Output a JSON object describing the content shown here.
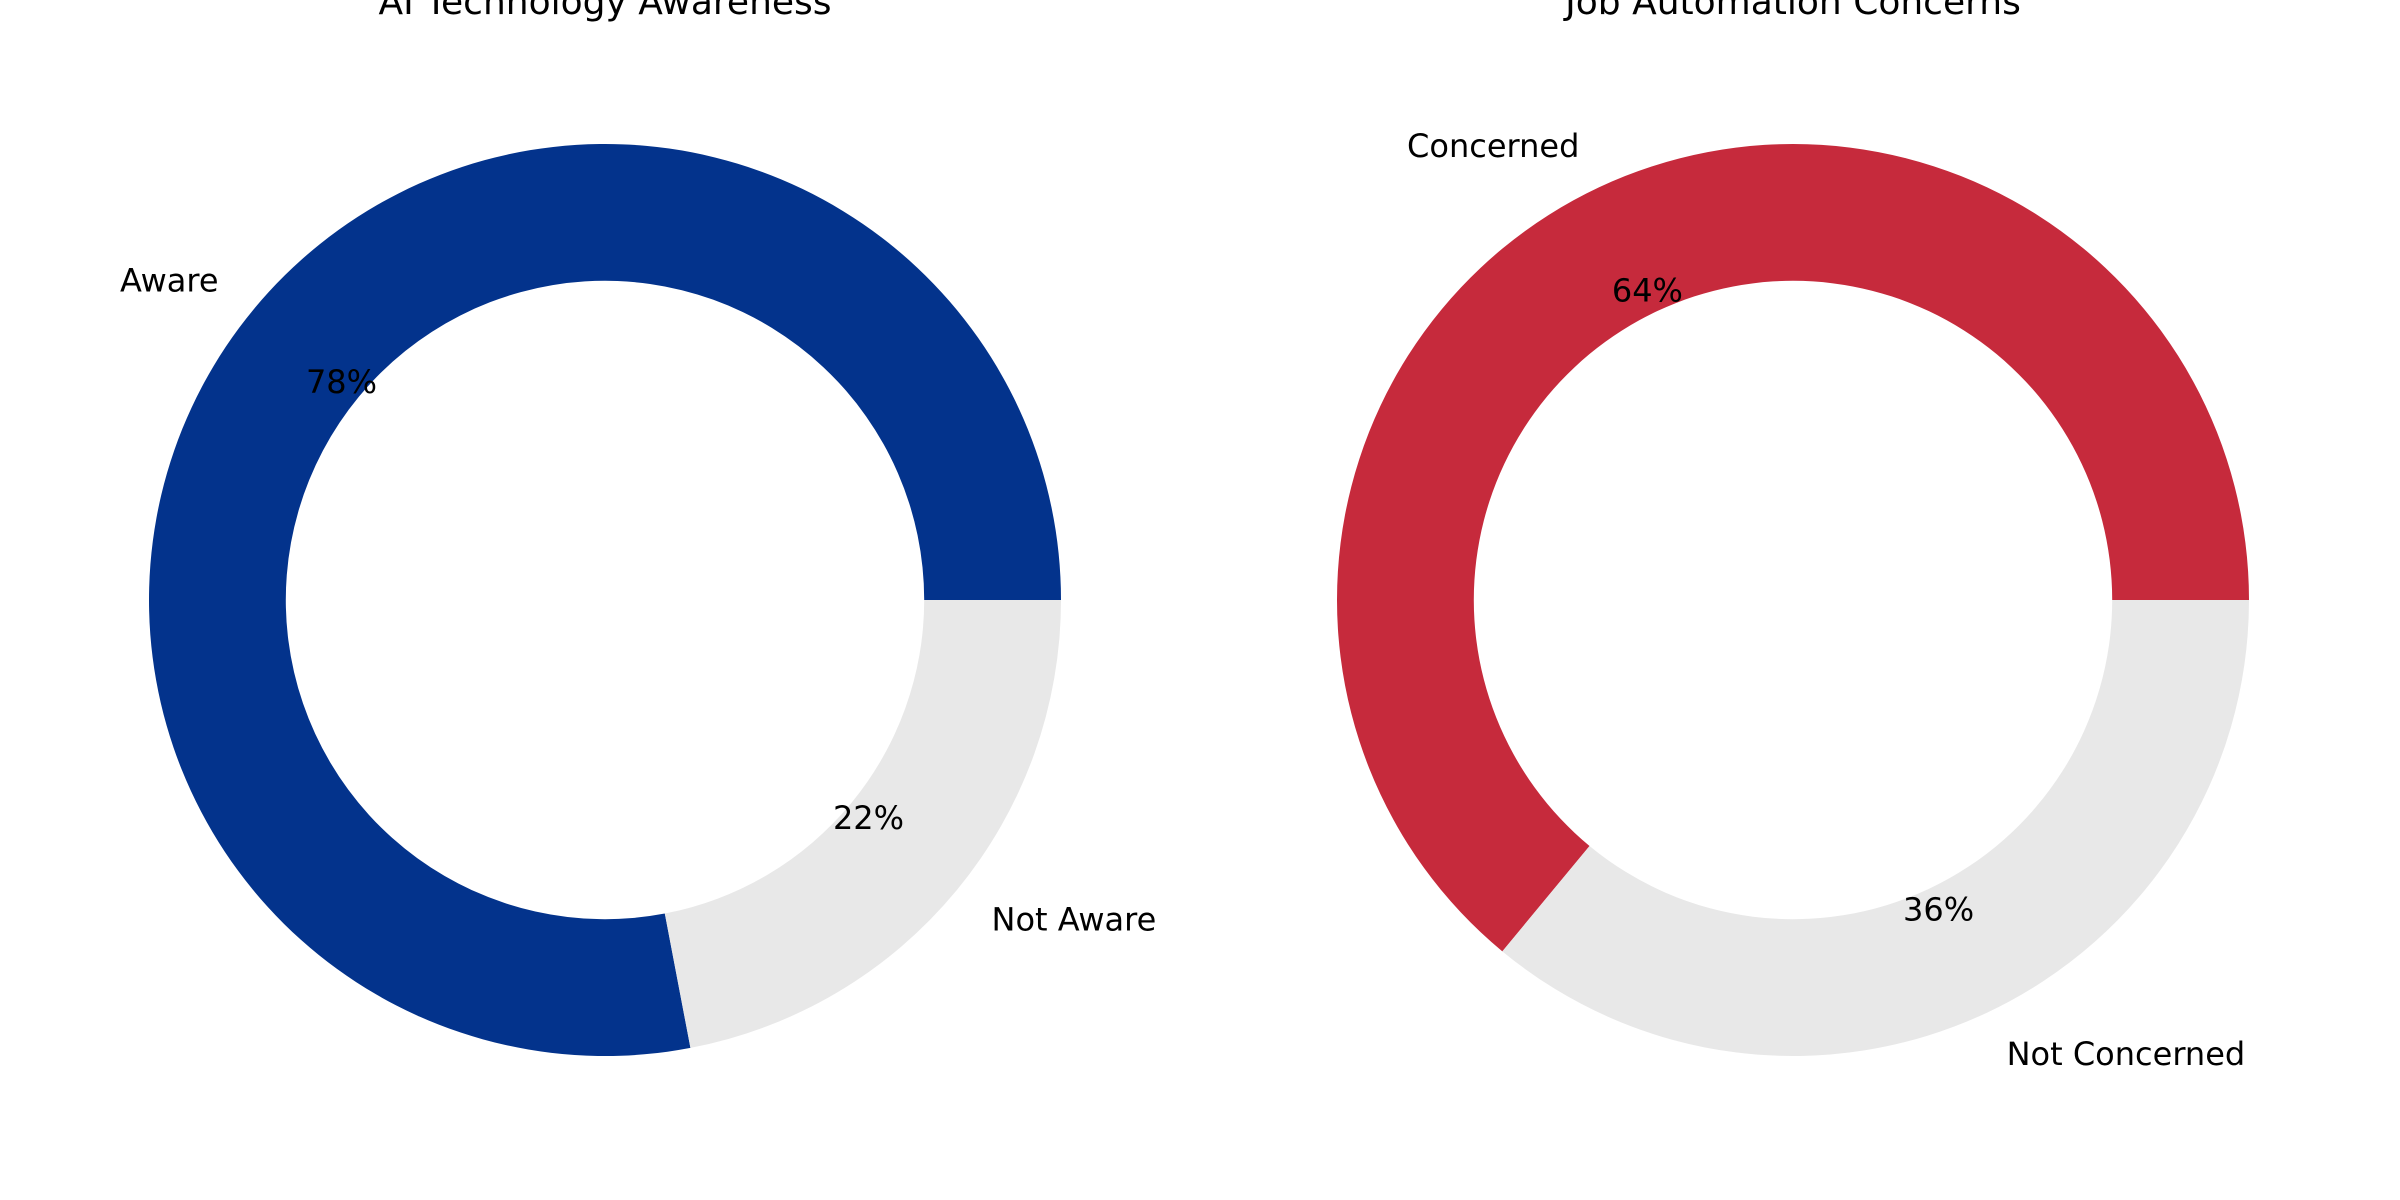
{
  "page": {
    "background": "#ffffff",
    "text_color": "#000000"
  },
  "chart_data": [
    {
      "type": "pie",
      "subtype": "donut",
      "title": "AI Technology Awareness",
      "donut_hole_ratio": 0.7,
      "start_angle": 0,
      "direction": "counterclockwise",
      "legend": "none",
      "grid": false,
      "label_distance": 1.1,
      "pct_distance": 0.75,
      "slices": [
        {
          "label": "Aware",
          "value": 78,
          "pct_label": "78%",
          "color": "#03338C"
        },
        {
          "label": "Not Aware",
          "value": 22,
          "pct_label": "22%",
          "color": "#E8E8E8"
        }
      ]
    },
    {
      "type": "pie",
      "subtype": "donut",
      "title": "Job Automation Concerns",
      "donut_hole_ratio": 0.7,
      "start_angle": 0,
      "direction": "counterclockwise",
      "legend": "none",
      "grid": false,
      "label_distance": 1.1,
      "pct_distance": 0.75,
      "slices": [
        {
          "label": "Concerned",
          "value": 64,
          "pct_label": "64%",
          "color": "#C62A3C"
        },
        {
          "label": "Not Concerned",
          "value": 36,
          "pct_label": "36%",
          "color": "#E8E8E8"
        }
      ]
    }
  ]
}
